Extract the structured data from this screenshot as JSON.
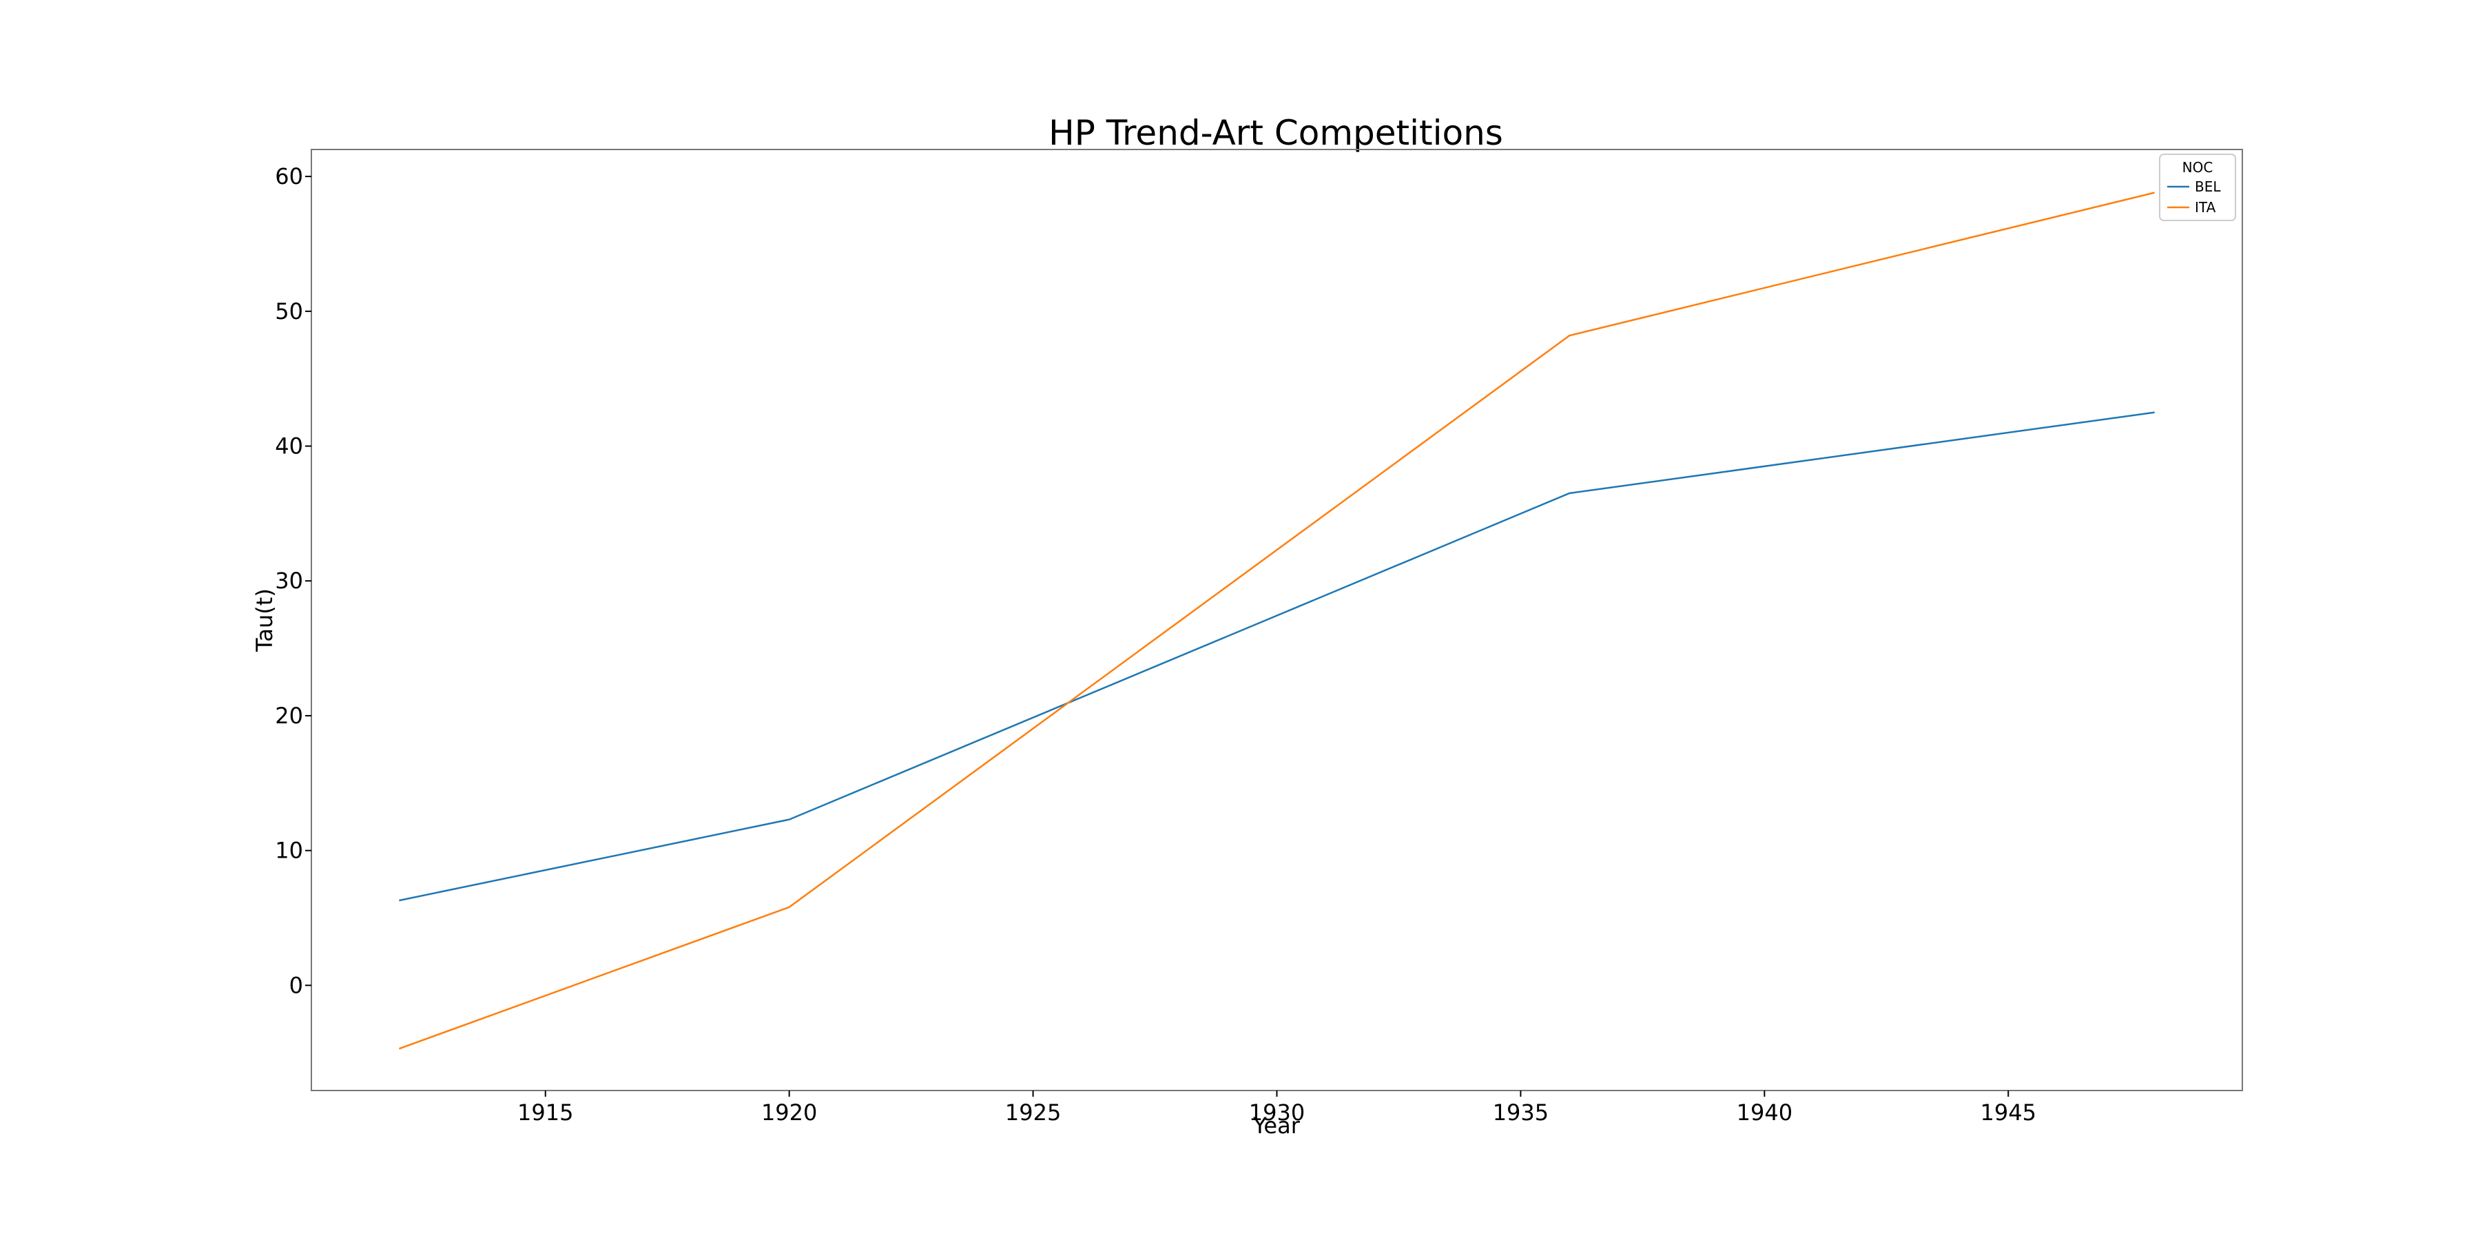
{
  "chart_data": {
    "type": "line",
    "title": "HP Trend-Art Competitions",
    "xlabel": "Year",
    "ylabel": "Tau(t)",
    "xlim": [
      1910.2,
      1949.8
    ],
    "ylim": [
      -7.8,
      62
    ],
    "xticks": [
      1915,
      1920,
      1925,
      1930,
      1935,
      1940,
      1945
    ],
    "yticks": [
      0,
      10,
      20,
      30,
      40,
      50,
      60
    ],
    "grid": false,
    "legend": {
      "title": "NOC",
      "placement": "top-right"
    },
    "series": [
      {
        "name": "BEL",
        "color": "#1f77b4",
        "x": [
          1912,
          1920,
          1936,
          1948
        ],
        "y": [
          6.3,
          12.3,
          36.5,
          42.5
        ]
      },
      {
        "name": "ITA",
        "color": "#ff7f0e",
        "x": [
          1912,
          1920,
          1936,
          1948
        ],
        "y": [
          -4.7,
          5.8,
          48.2,
          58.8
        ]
      }
    ]
  }
}
